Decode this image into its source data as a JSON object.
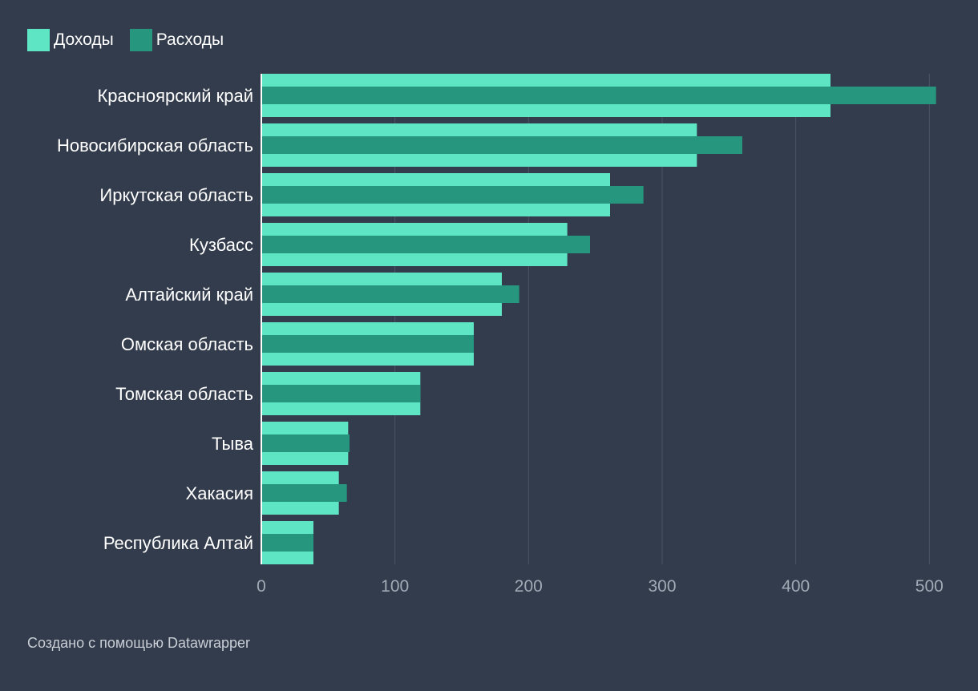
{
  "legend": {
    "income_label": "Доходы",
    "expense_label": "Расходы"
  },
  "colors": {
    "background": "#333c4c",
    "income": "#5ee6c4",
    "expense": "#26967e",
    "grid": "#4b5566",
    "axis_text": "#a2aab6",
    "label_text": "#ffffff"
  },
  "footer": {
    "credit": "Создано с помощью Datawrapper"
  },
  "chart_data": {
    "type": "bar",
    "orientation": "horizontal",
    "categories": [
      "Красноярский край",
      "Новосибирская область",
      "Иркутская область",
      "Кузбасс",
      "Алтайский край",
      "Омская область",
      "Томская область",
      "Тыва",
      "Хакасия",
      "Республика Алтай"
    ],
    "series": [
      {
        "name": "Доходы",
        "values": [
          426,
          326,
          261,
          229,
          180,
          159,
          119,
          65,
          58,
          39
        ]
      },
      {
        "name": "Расходы",
        "values": [
          505,
          360,
          286,
          246,
          193,
          159,
          119,
          66,
          64,
          39
        ]
      }
    ],
    "xlim": [
      0,
      510
    ],
    "xticks": [
      0,
      100,
      200,
      300,
      400,
      500
    ],
    "grid": true,
    "legend_position": "top-left"
  }
}
